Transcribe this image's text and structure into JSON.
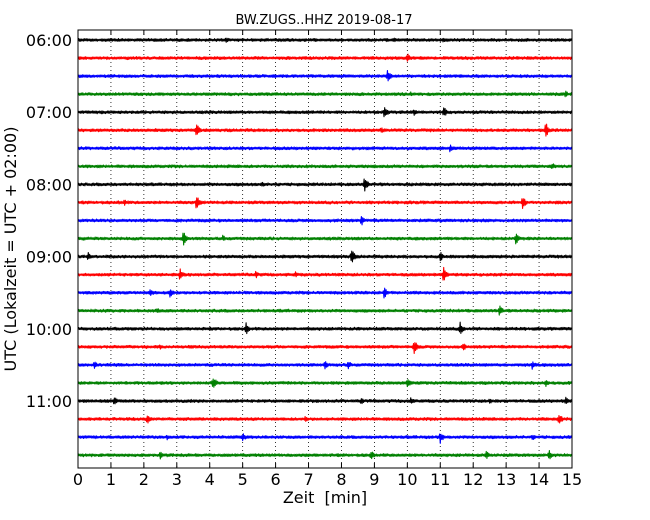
{
  "chart_data": {
    "type": "line",
    "title": "BW.ZUGS..HHZ 2019-08-17",
    "xlabel": "Zeit  [min]",
    "ylabel": "UTC (Lokalzeit = UTC + 02:00)",
    "xlim": [
      0,
      15
    ],
    "x_ticks": [
      "0",
      "1",
      "2",
      "3",
      "4",
      "5",
      "6",
      "7",
      "8",
      "9",
      "10",
      "11",
      "12",
      "13",
      "14",
      "15"
    ],
    "y_tick_labels": [
      "06:00",
      "07:00",
      "08:00",
      "09:00",
      "10:00",
      "11:00"
    ],
    "rows_per_hour": 4,
    "trace_colors": [
      "#000000",
      "#ff0000",
      "#0000ff",
      "#008000"
    ],
    "grid": "vertical dotted",
    "traces": [
      {
        "time": "06:00",
        "events": [
          [
            4.5,
            0.35
          ],
          [
            9.6,
            0.3
          ],
          [
            11.1,
            0.35
          ]
        ]
      },
      {
        "time": "06:15",
        "events": [
          [
            10.0,
            0.55
          ]
        ]
      },
      {
        "time": "06:30",
        "events": [
          [
            9.4,
            0.8
          ]
        ]
      },
      {
        "time": "06:45",
        "events": [
          [
            10.1,
            0.35
          ],
          [
            14.8,
            0.4
          ]
        ]
      },
      {
        "time": "07:00",
        "events": [
          [
            9.3,
            0.85
          ],
          [
            10.2,
            0.5
          ],
          [
            11.1,
            0.75
          ]
        ]
      },
      {
        "time": "07:15",
        "events": [
          [
            3.6,
            0.8
          ],
          [
            9.2,
            0.45
          ],
          [
            14.2,
            0.95
          ]
        ]
      },
      {
        "time": "07:30",
        "events": [
          [
            11.3,
            0.5
          ]
        ]
      },
      {
        "time": "07:45",
        "events": [
          [
            9.0,
            0.3
          ],
          [
            14.4,
            0.45
          ]
        ]
      },
      {
        "time": "08:00",
        "events": [
          [
            5.6,
            0.4
          ],
          [
            8.7,
            0.95
          ]
        ]
      },
      {
        "time": "08:15",
        "events": [
          [
            1.4,
            0.45
          ],
          [
            3.6,
            0.9
          ],
          [
            13.5,
            0.8
          ]
        ]
      },
      {
        "time": "08:30",
        "events": [
          [
            8.6,
            0.65
          ]
        ]
      },
      {
        "time": "08:45",
        "events": [
          [
            3.2,
            0.85
          ],
          [
            4.4,
            0.4
          ],
          [
            13.3,
            0.75
          ]
        ]
      },
      {
        "time": "09:00",
        "events": [
          [
            0.3,
            0.55
          ],
          [
            8.3,
            0.95
          ],
          [
            11.0,
            0.6
          ]
        ]
      },
      {
        "time": "09:15",
        "events": [
          [
            3.1,
            0.75
          ],
          [
            5.4,
            0.45
          ],
          [
            6.6,
            0.35
          ],
          [
            11.1,
            0.95
          ]
        ]
      },
      {
        "time": "09:30",
        "events": [
          [
            2.2,
            0.5
          ],
          [
            2.8,
            0.7
          ],
          [
            9.3,
            0.75
          ]
        ]
      },
      {
        "time": "09:45",
        "events": [
          [
            2.4,
            0.4
          ],
          [
            12.8,
            0.7
          ]
        ]
      },
      {
        "time": "10:00",
        "events": [
          [
            5.1,
            0.7
          ],
          [
            11.6,
            0.85
          ]
        ]
      },
      {
        "time": "10:15",
        "events": [
          [
            2.5,
            0.35
          ],
          [
            10.2,
            0.9
          ],
          [
            11.7,
            0.45
          ]
        ]
      },
      {
        "time": "10:30",
        "events": [
          [
            0.5,
            0.45
          ],
          [
            7.5,
            0.55
          ],
          [
            8.2,
            0.55
          ],
          [
            13.8,
            0.6
          ]
        ]
      },
      {
        "time": "10:45",
        "events": [
          [
            4.1,
            0.9
          ],
          [
            10.0,
            0.6
          ],
          [
            14.2,
            0.5
          ]
        ]
      },
      {
        "time": "11:00",
        "events": [
          [
            1.1,
            0.55
          ],
          [
            8.6,
            0.4
          ],
          [
            10.1,
            0.45
          ],
          [
            12.5,
            0.35
          ],
          [
            14.8,
            0.5
          ]
        ]
      },
      {
        "time": "11:15",
        "events": [
          [
            2.1,
            0.7
          ],
          [
            6.9,
            0.35
          ],
          [
            14.6,
            0.75
          ]
        ]
      },
      {
        "time": "11:30",
        "events": [
          [
            2.7,
            0.35
          ],
          [
            5.0,
            0.6
          ],
          [
            11.0,
            0.75
          ],
          [
            13.8,
            0.4
          ]
        ]
      },
      {
        "time": "11:45",
        "events": [
          [
            2.5,
            0.5
          ],
          [
            8.9,
            0.55
          ],
          [
            12.4,
            0.5
          ],
          [
            14.3,
            0.6
          ]
        ]
      }
    ]
  }
}
